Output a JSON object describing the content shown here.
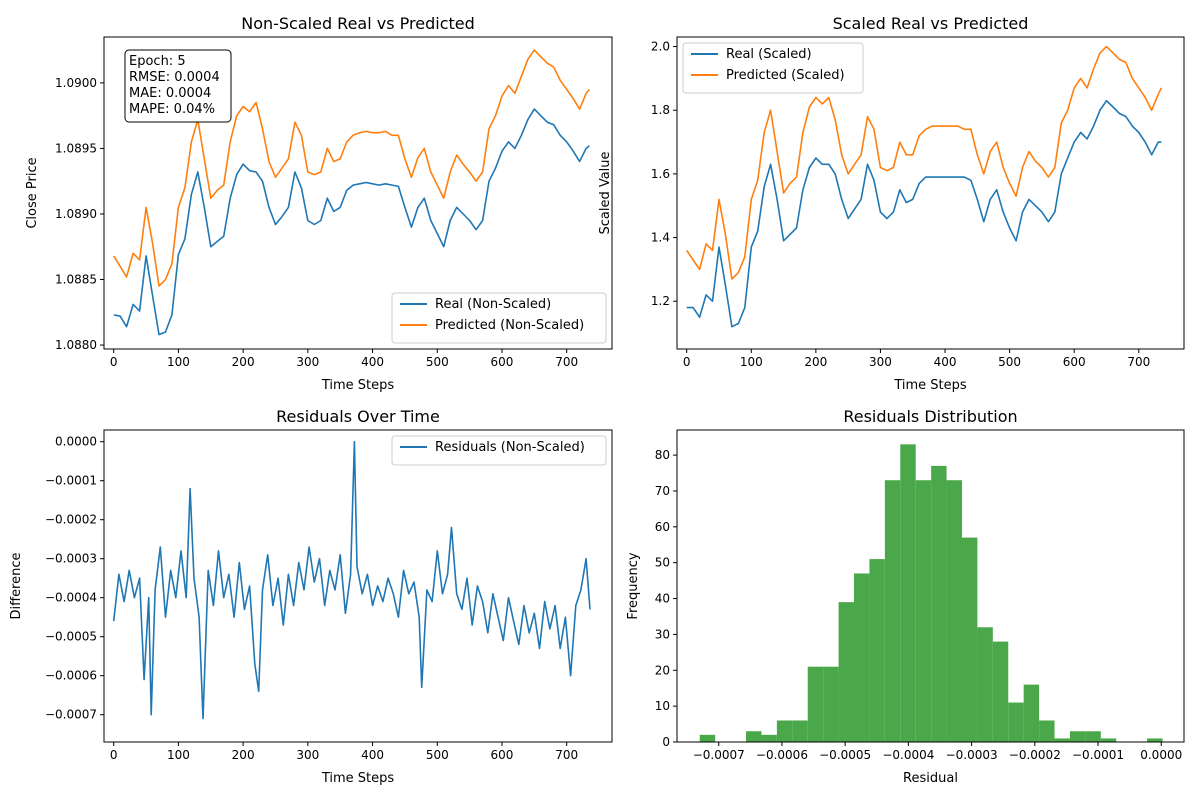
{
  "chart_data": [
    {
      "type": "line",
      "title": "Non-Scaled Real vs Predicted",
      "xlabel": "Time Steps",
      "ylabel": "Close Price",
      "xlim": [
        -15,
        770
      ],
      "ylim": [
        1.08797,
        1.09035
      ],
      "xticks": [
        0,
        100,
        200,
        300,
        400,
        500,
        600,
        700
      ],
      "yticks": [
        1.088,
        1.0885,
        1.089,
        1.0895,
        1.09
      ],
      "ytick_labels": [
        "1.0880",
        "1.0885",
        "1.0890",
        "1.0895",
        "1.0900"
      ],
      "legend_position": "lower right",
      "annotation": [
        "Epoch: 5",
        "RMSE: 0.0004",
        "MAE: 0.0004",
        "MAPE: 0.04%"
      ],
      "series": [
        {
          "name": "Real (Non-Scaled)",
          "color": "#1f77b4",
          "x": [
            0,
            10,
            20,
            30,
            40,
            50,
            60,
            70,
            80,
            90,
            100,
            110,
            120,
            130,
            140,
            150,
            160,
            170,
            180,
            190,
            200,
            210,
            220,
            230,
            240,
            250,
            260,
            270,
            280,
            290,
            300,
            310,
            320,
            330,
            340,
            350,
            360,
            370,
            380,
            390,
            400,
            410,
            420,
            430,
            440,
            450,
            460,
            470,
            480,
            490,
            500,
            510,
            520,
            530,
            540,
            550,
            560,
            570,
            580,
            590,
            600,
            610,
            620,
            630,
            640,
            650,
            660,
            670,
            680,
            690,
            700,
            710,
            720,
            730,
            735
          ],
          "y": [
            1.08823,
            1.08822,
            1.08814,
            1.08831,
            1.08826,
            1.08868,
            1.08838,
            1.08808,
            1.0881,
            1.08823,
            1.08869,
            1.08881,
            1.08915,
            1.08932,
            1.08905,
            1.08875,
            1.08879,
            1.08883,
            1.08912,
            1.0893,
            1.08938,
            1.08933,
            1.08932,
            1.08925,
            1.08905,
            1.08892,
            1.08898,
            1.08905,
            1.08932,
            1.0892,
            1.08895,
            1.08892,
            1.08895,
            1.08912,
            1.08902,
            1.08905,
            1.08918,
            1.08922,
            1.08923,
            1.08924,
            1.08923,
            1.08922,
            1.08923,
            1.08922,
            1.08921,
            1.08905,
            1.0889,
            1.08905,
            1.08912,
            1.08895,
            1.08885,
            1.08875,
            1.08895,
            1.08905,
            1.089,
            1.08895,
            1.08888,
            1.08895,
            1.08925,
            1.08935,
            1.08948,
            1.08955,
            1.0895,
            1.0896,
            1.08972,
            1.0898,
            1.08975,
            1.0897,
            1.08968,
            1.0896,
            1.08955,
            1.08948,
            1.0894,
            1.0895,
            1.08952
          ]
        },
        {
          "name": "Predicted (Non-Scaled)",
          "color": "#ff7f0e",
          "x": [
            0,
            10,
            20,
            30,
            40,
            50,
            60,
            70,
            80,
            90,
            100,
            110,
            120,
            130,
            140,
            150,
            160,
            170,
            180,
            190,
            200,
            210,
            220,
            230,
            240,
            250,
            260,
            270,
            280,
            290,
            300,
            310,
            320,
            330,
            340,
            350,
            360,
            370,
            380,
            390,
            400,
            410,
            420,
            430,
            440,
            450,
            460,
            470,
            480,
            490,
            500,
            510,
            520,
            530,
            540,
            550,
            560,
            570,
            580,
            590,
            600,
            610,
            620,
            630,
            640,
            650,
            660,
            670,
            680,
            690,
            700,
            710,
            720,
            730,
            735
          ],
          "y": [
            1.08868,
            1.0886,
            1.08852,
            1.0887,
            1.08865,
            1.08905,
            1.08878,
            1.08845,
            1.0885,
            1.08862,
            1.08905,
            1.0892,
            1.08955,
            1.08972,
            1.08942,
            1.08912,
            1.08918,
            1.08922,
            1.08955,
            1.08975,
            1.08982,
            1.08978,
            1.08985,
            1.08965,
            1.0894,
            1.08928,
            1.08935,
            1.08942,
            1.0897,
            1.0896,
            1.08932,
            1.0893,
            1.08932,
            1.0895,
            1.0894,
            1.08942,
            1.08955,
            1.0896,
            1.08962,
            1.08963,
            1.08962,
            1.08962,
            1.08963,
            1.0896,
            1.0896,
            1.08942,
            1.08928,
            1.08943,
            1.0895,
            1.08932,
            1.08922,
            1.08912,
            1.08932,
            1.08945,
            1.08938,
            1.08932,
            1.08925,
            1.08932,
            1.08965,
            1.08975,
            1.0899,
            1.08998,
            1.08992,
            1.09005,
            1.09018,
            1.09025,
            1.0902,
            1.09015,
            1.09012,
            1.09002,
            1.08995,
            1.08988,
            1.0898,
            1.08992,
            1.08995
          ]
        }
      ]
    },
    {
      "type": "line",
      "title": "Scaled Real vs Predicted",
      "xlabel": "Time Steps",
      "ylabel": "Scaled Value",
      "xlim": [
        -15,
        770
      ],
      "ylim": [
        1.05,
        2.03
      ],
      "xticks": [
        0,
        100,
        200,
        300,
        400,
        500,
        600,
        700
      ],
      "yticks": [
        1.2,
        1.4,
        1.6,
        1.8,
        2.0
      ],
      "ytick_labels": [
        "1.2",
        "1.4",
        "1.6",
        "1.8",
        "2.0"
      ],
      "legend_position": "upper left",
      "series": [
        {
          "name": "Real (Scaled)",
          "color": "#1f77b4",
          "x": [
            0,
            10,
            20,
            30,
            40,
            50,
            60,
            70,
            80,
            90,
            100,
            110,
            120,
            130,
            140,
            150,
            160,
            170,
            180,
            190,
            200,
            210,
            220,
            230,
            240,
            250,
            260,
            270,
            280,
            290,
            300,
            310,
            320,
            330,
            340,
            350,
            360,
            370,
            380,
            390,
            400,
            410,
            420,
            430,
            440,
            450,
            460,
            470,
            480,
            490,
            500,
            510,
            520,
            530,
            540,
            550,
            560,
            570,
            580,
            590,
            600,
            610,
            620,
            630,
            640,
            650,
            660,
            670,
            680,
            690,
            700,
            710,
            720,
            730,
            735
          ],
          "y": [
            1.18,
            1.18,
            1.15,
            1.22,
            1.2,
            1.37,
            1.25,
            1.12,
            1.13,
            1.18,
            1.37,
            1.42,
            1.56,
            1.63,
            1.52,
            1.39,
            1.41,
            1.43,
            1.55,
            1.62,
            1.65,
            1.63,
            1.63,
            1.6,
            1.52,
            1.46,
            1.49,
            1.52,
            1.63,
            1.58,
            1.48,
            1.46,
            1.48,
            1.55,
            1.51,
            1.52,
            1.57,
            1.59,
            1.59,
            1.59,
            1.59,
            1.59,
            1.59,
            1.59,
            1.58,
            1.52,
            1.45,
            1.52,
            1.55,
            1.48,
            1.43,
            1.39,
            1.48,
            1.52,
            1.5,
            1.48,
            1.45,
            1.48,
            1.6,
            1.65,
            1.7,
            1.73,
            1.71,
            1.75,
            1.8,
            1.83,
            1.81,
            1.79,
            1.78,
            1.75,
            1.73,
            1.7,
            1.66,
            1.7,
            1.7
          ]
        },
        {
          "name": "Predicted (Scaled)",
          "color": "#ff7f0e",
          "x": [
            0,
            10,
            20,
            30,
            40,
            50,
            60,
            70,
            80,
            90,
            100,
            110,
            120,
            130,
            140,
            150,
            160,
            170,
            180,
            190,
            200,
            210,
            220,
            230,
            240,
            250,
            260,
            270,
            280,
            290,
            300,
            310,
            320,
            330,
            340,
            350,
            360,
            370,
            380,
            390,
            400,
            410,
            420,
            430,
            440,
            450,
            460,
            470,
            480,
            490,
            500,
            510,
            520,
            530,
            540,
            550,
            560,
            570,
            580,
            590,
            600,
            610,
            620,
            630,
            640,
            650,
            660,
            670,
            680,
            690,
            700,
            710,
            720,
            730,
            735
          ],
          "y": [
            1.36,
            1.33,
            1.3,
            1.38,
            1.36,
            1.52,
            1.41,
            1.27,
            1.29,
            1.34,
            1.52,
            1.58,
            1.73,
            1.8,
            1.67,
            1.54,
            1.57,
            1.59,
            1.73,
            1.81,
            1.84,
            1.82,
            1.84,
            1.77,
            1.66,
            1.6,
            1.63,
            1.66,
            1.78,
            1.74,
            1.62,
            1.61,
            1.62,
            1.7,
            1.66,
            1.66,
            1.72,
            1.74,
            1.75,
            1.75,
            1.75,
            1.75,
            1.75,
            1.74,
            1.74,
            1.66,
            1.6,
            1.67,
            1.7,
            1.62,
            1.57,
            1.53,
            1.62,
            1.67,
            1.64,
            1.62,
            1.59,
            1.62,
            1.76,
            1.8,
            1.87,
            1.9,
            1.87,
            1.93,
            1.98,
            2.0,
            1.98,
            1.96,
            1.95,
            1.9,
            1.87,
            1.84,
            1.8,
            1.85,
            1.87
          ]
        }
      ]
    },
    {
      "type": "line",
      "title": "Residuals Over Time",
      "xlabel": "Time Steps",
      "ylabel": "Difference",
      "xlim": [
        -15,
        770
      ],
      "ylim": [
        -0.00077,
        3e-05
      ],
      "xticks": [
        0,
        100,
        200,
        300,
        400,
        500,
        600,
        700
      ],
      "yticks": [
        0,
        -0.0001,
        -0.0002,
        -0.0003,
        -0.0004,
        -0.0005,
        -0.0006,
        -0.0007
      ],
      "ytick_labels": [
        "0.0000",
        "−0.0001",
        "−0.0002",
        "−0.0003",
        "−0.0004",
        "−0.0005",
        "−0.0006",
        "−0.0007"
      ],
      "legend_position": "upper right",
      "series": [
        {
          "name": "Residuals (Non-Scaled)",
          "color": "#1f77b4",
          "x": [
            0,
            8,
            16,
            24,
            32,
            40,
            47,
            54,
            58,
            64,
            72,
            80,
            88,
            96,
            104,
            112,
            118,
            124,
            132,
            138,
            146,
            154,
            162,
            170,
            178,
            186,
            194,
            202,
            210,
            218,
            224,
            230,
            238,
            246,
            254,
            262,
            270,
            278,
            286,
            294,
            302,
            310,
            318,
            326,
            334,
            342,
            350,
            358,
            366,
            372,
            376,
            384,
            392,
            400,
            408,
            416,
            424,
            432,
            440,
            448,
            456,
            464,
            472,
            476,
            484,
            492,
            500,
            508,
            516,
            522,
            530,
            538,
            546,
            554,
            562,
            570,
            578,
            586,
            594,
            602,
            610,
            618,
            626,
            634,
            642,
            650,
            658,
            666,
            674,
            682,
            690,
            698,
            706,
            714,
            722,
            730,
            736
          ],
          "y": [
            -0.00046,
            -0.00034,
            -0.00041,
            -0.00033,
            -0.0004,
            -0.00035,
            -0.00061,
            -0.0004,
            -0.0007,
            -0.00038,
            -0.00027,
            -0.00045,
            -0.00033,
            -0.0004,
            -0.00028,
            -0.0004,
            -0.00012,
            -0.00035,
            -0.00045,
            -0.00071,
            -0.00033,
            -0.00042,
            -0.00028,
            -0.0004,
            -0.00034,
            -0.00045,
            -0.00031,
            -0.00043,
            -0.00037,
            -0.00057,
            -0.00064,
            -0.00038,
            -0.00029,
            -0.00042,
            -0.00035,
            -0.00047,
            -0.00034,
            -0.00042,
            -0.00031,
            -0.00038,
            -0.00027,
            -0.00036,
            -0.0003,
            -0.00042,
            -0.00033,
            -0.00038,
            -0.00029,
            -0.00044,
            -0.00034,
            0.0,
            -0.00032,
            -0.00039,
            -0.00034,
            -0.00042,
            -0.00037,
            -0.00041,
            -0.00035,
            -0.00039,
            -0.00045,
            -0.00033,
            -0.00039,
            -0.00036,
            -0.00045,
            -0.00063,
            -0.00038,
            -0.00041,
            -0.00028,
            -0.00039,
            -0.00034,
            -0.00022,
            -0.00039,
            -0.00043,
            -0.00035,
            -0.00047,
            -0.00037,
            -0.00041,
            -0.00049,
            -0.00039,
            -0.00045,
            -0.00051,
            -0.0004,
            -0.00046,
            -0.00052,
            -0.00042,
            -0.00049,
            -0.00044,
            -0.00053,
            -0.00041,
            -0.00048,
            -0.00042,
            -0.00053,
            -0.00045,
            -0.0006,
            -0.00042,
            -0.00038,
            -0.0003,
            -0.00043
          ]
        }
      ]
    },
    {
      "type": "bar",
      "title": "Residuals Distribution",
      "xlabel": "Residual",
      "ylabel": "Frequency",
      "xlim": [
        -0.000766,
        3.6e-05
      ],
      "ylim": [
        0,
        87
      ],
      "xticks": [
        -0.0007,
        -0.0006,
        -0.0005,
        -0.0004,
        -0.0003,
        -0.0002,
        -0.0001,
        0.0
      ],
      "xtick_labels": [
        "−0.0007",
        "−0.0006",
        "−0.0005",
        "−0.0004",
        "−0.0003",
        "−0.0002",
        "−0.0001",
        "0.0000"
      ],
      "yticks": [
        0,
        10,
        20,
        30,
        40,
        50,
        60,
        70,
        80
      ],
      "ytick_labels": [
        "0",
        "10",
        "20",
        "30",
        "40",
        "50",
        "60",
        "70",
        "80"
      ],
      "bin_start": -0.00073,
      "bin_width": 2.44e-05,
      "values": [
        2,
        0,
        0,
        3,
        2,
        6,
        6,
        21,
        21,
        39,
        47,
        51,
        73,
        83,
        73,
        77,
        73,
        57,
        32,
        28,
        11,
        16,
        6,
        1,
        3,
        3,
        1,
        0,
        0,
        1
      ],
      "color": "#4aa84a"
    }
  ]
}
